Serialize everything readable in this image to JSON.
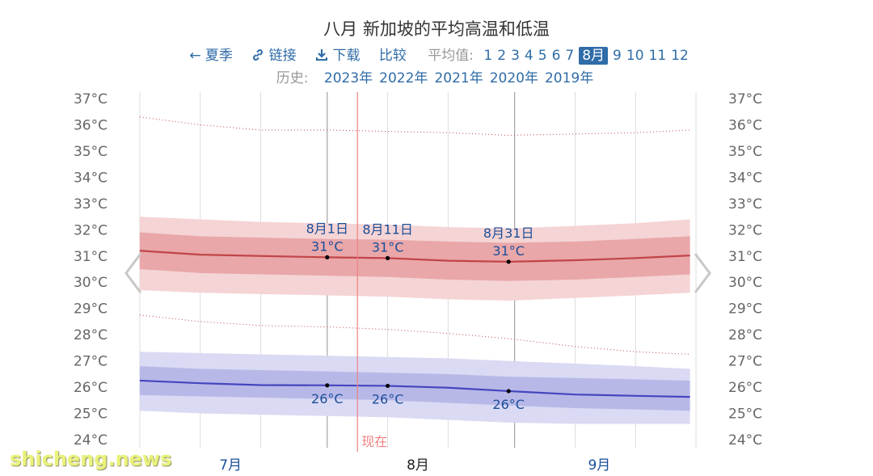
{
  "title": "八月 新加坡的平均高温和低温",
  "toolbar": {
    "back": "← 夏季",
    "link": "链接",
    "download": "下载",
    "compare": "比较",
    "avg_label": "平均值:",
    "months": [
      "1",
      "2",
      "3",
      "4",
      "5",
      "6",
      "7",
      "8月",
      "9",
      "10",
      "11",
      "12"
    ],
    "selected_month": "8月"
  },
  "history": {
    "label": "历史:",
    "years": [
      "2023年",
      "2022年",
      "2021年",
      "2020年",
      "2019年"
    ]
  },
  "watermark": "shicheng.news",
  "icons": {
    "back": "arrow-left-icon",
    "link": "link-icon",
    "download": "download-icon",
    "prev": "chevron-left-icon",
    "next": "chevron-right-icon"
  },
  "chart_data": {
    "type": "line",
    "y_axis": {
      "min": 24,
      "max": 37,
      "unit": "°C"
    },
    "x_labels": [
      "7月",
      "8月",
      "9月"
    ],
    "now_label": "现在",
    "colors": {
      "high": "#c0454a",
      "high_band_inner": "#e9a7a9",
      "high_band_outer": "#f5d4d5",
      "low": "#4545c0",
      "low_band_inner": "#b8b8e8",
      "low_band_outer": "#dadaf4",
      "label": "#1a4e99",
      "grid": "#dddddd",
      "now": "#f08080",
      "axis_text": "#666666"
    },
    "x": [
      "7月1日",
      "7月11日",
      "7月21日",
      "8月1日",
      "8月11日",
      "8月21日",
      "8月31日",
      "9月11日",
      "9月21日",
      "9月30日"
    ],
    "series": [
      {
        "key": "high_mean",
        "values": [
          31.2,
          31.05,
          31.0,
          30.95,
          30.92,
          30.82,
          30.78,
          30.84,
          30.92,
          31.02
        ]
      },
      {
        "key": "high_p25",
        "values": [
          30.5,
          30.35,
          30.3,
          30.25,
          30.2,
          30.1,
          30.05,
          30.1,
          30.2,
          30.3
        ]
      },
      {
        "key": "high_p75",
        "values": [
          31.9,
          31.75,
          31.7,
          31.65,
          31.62,
          31.55,
          31.5,
          31.55,
          31.65,
          31.75
        ]
      },
      {
        "key": "high_p10",
        "values": [
          29.7,
          29.6,
          29.55,
          29.5,
          29.45,
          29.35,
          29.3,
          29.4,
          29.5,
          29.6
        ]
      },
      {
        "key": "high_p90",
        "values": [
          32.5,
          32.4,
          32.3,
          32.25,
          32.2,
          32.1,
          32.05,
          32.15,
          32.25,
          32.4
        ]
      },
      {
        "key": "record_high",
        "values": [
          36.3,
          36.0,
          35.8,
          35.8,
          35.75,
          35.7,
          35.6,
          35.65,
          35.7,
          35.8
        ]
      },
      {
        "key": "low_mean",
        "values": [
          26.25,
          26.15,
          26.08,
          26.07,
          26.05,
          25.98,
          25.85,
          25.72,
          25.67,
          25.63
        ]
      },
      {
        "key": "low_p25",
        "values": [
          25.7,
          25.65,
          25.6,
          25.55,
          25.5,
          25.4,
          25.3,
          25.2,
          25.15,
          25.1
        ]
      },
      {
        "key": "low_p75",
        "values": [
          26.8,
          26.7,
          26.65,
          26.6,
          26.55,
          26.5,
          26.4,
          26.35,
          26.3,
          26.25
        ]
      },
      {
        "key": "low_p10",
        "values": [
          25.1,
          25.0,
          24.95,
          24.9,
          24.85,
          24.75,
          24.65,
          24.6,
          24.6,
          24.6
        ]
      },
      {
        "key": "low_p90",
        "values": [
          27.35,
          27.3,
          27.25,
          27.2,
          27.15,
          27.1,
          27.0,
          26.9,
          26.8,
          26.7
        ]
      },
      {
        "key": "record_low",
        "values": [
          28.75,
          28.5,
          28.35,
          28.3,
          28.2,
          28.05,
          27.85,
          27.55,
          27.35,
          27.25
        ]
      }
    ],
    "annotations": [
      {
        "date": "8月1日",
        "high_label": "31°C",
        "low_label": "26°C",
        "high": 30.95,
        "low": 26.07
      },
      {
        "date": "8月11日",
        "high_label": "31°C",
        "low_label": "26°C",
        "high": 30.92,
        "low": 26.05
      },
      {
        "date": "8月31日",
        "high_label": "31°C",
        "low_label": "26°C",
        "high": 30.78,
        "low": 25.85
      }
    ]
  }
}
